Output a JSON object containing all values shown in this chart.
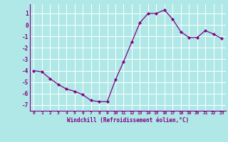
{
  "x": [
    0,
    1,
    2,
    3,
    4,
    5,
    6,
    7,
    8,
    9,
    10,
    11,
    12,
    13,
    14,
    15,
    16,
    17,
    18,
    19,
    20,
    21,
    22,
    23
  ],
  "y": [
    -4.0,
    -4.1,
    -4.7,
    -5.2,
    -5.6,
    -5.8,
    -6.1,
    -6.6,
    -6.7,
    -6.7,
    -4.8,
    -3.2,
    -1.5,
    0.2,
    1.0,
    1.0,
    1.3,
    0.5,
    -0.6,
    -1.1,
    -1.1,
    -0.5,
    -0.8,
    -1.2
  ],
  "line_color": "#800080",
  "marker": "D",
  "marker_size": 2.5,
  "bg_color": "#b0e8e8",
  "grid_color": "#c8e8e8",
  "xlabel": "Windchill (Refroidissement éolien,°C)",
  "xlabel_color": "#800080",
  "tick_color": "#800080",
  "axis_color": "#800080",
  "ylim": [
    -7.5,
    1.8
  ],
  "xlim": [
    -0.5,
    23.5
  ],
  "yticks": [
    -7,
    -6,
    -5,
    -4,
    -3,
    -2,
    -1,
    0,
    1
  ],
  "xtick_labels": [
    "0",
    "1",
    "2",
    "3",
    "4",
    "5",
    "6",
    "7",
    "8",
    "9",
    "10",
    "11",
    "12",
    "13",
    "14",
    "15",
    "16",
    "17",
    "18",
    "19",
    "20",
    "21",
    "22",
    "23"
  ]
}
